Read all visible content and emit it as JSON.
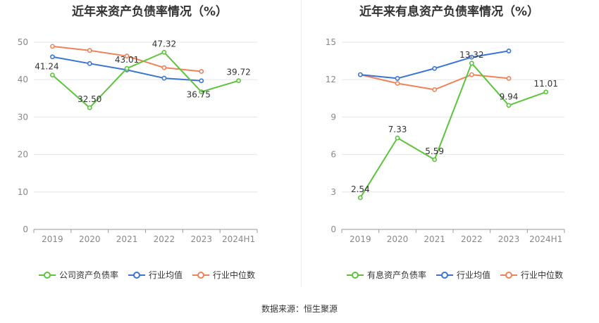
{
  "source_text": "数据来源：恒生聚源",
  "colors": {
    "company": "#5cc43c",
    "industry_avg": "#3a75d6",
    "industry_median": "#f0825a",
    "grid": "#e6e6e6",
    "axis_text": "#888888"
  },
  "chart_data": [
    {
      "type": "line",
      "title": "近年来资产负债率情况（%）",
      "categories": [
        "2019",
        "2020",
        "2021",
        "2022",
        "2023",
        "2024H1"
      ],
      "ylim": [
        0,
        50
      ],
      "yticks": [
        0,
        10,
        20,
        30,
        40,
        50
      ],
      "grid": true,
      "legend_position": "bottom",
      "series": [
        {
          "name": "公司资产负债率",
          "color": "#5cc43c",
          "values": [
            41.24,
            32.5,
            43.01,
            47.32,
            36.75,
            39.72
          ],
          "labels": [
            "41.24",
            "32.50",
            "43.01",
            "47.32",
            "36.75",
            "39.72"
          ]
        },
        {
          "name": "行业均值",
          "color": "#3a75d6",
          "values": [
            46.1,
            44.3,
            42.6,
            40.4,
            39.7,
            null
          ]
        },
        {
          "name": "行业中位数",
          "color": "#f0825a",
          "values": [
            48.9,
            47.8,
            46.3,
            43.2,
            42.2,
            null
          ]
        }
      ]
    },
    {
      "type": "line",
      "title": "近年来有息资产负债率情况（%）",
      "categories": [
        "2019",
        "2020",
        "2021",
        "2022",
        "2023",
        "2024H1"
      ],
      "ylim": [
        0,
        15
      ],
      "yticks": [
        0,
        3,
        6,
        9,
        12,
        15
      ],
      "grid": true,
      "legend_position": "bottom",
      "series": [
        {
          "name": "有息资产负债率",
          "color": "#5cc43c",
          "values": [
            2.54,
            7.33,
            5.59,
            13.32,
            9.94,
            11.01
          ],
          "labels": [
            "2.54",
            "7.33",
            "5.59",
            "13.32",
            "9.94",
            "11.01"
          ]
        },
        {
          "name": "行业均值",
          "color": "#3a75d6",
          "values": [
            12.4,
            12.1,
            12.9,
            13.8,
            14.3,
            null
          ]
        },
        {
          "name": "行业中位数",
          "color": "#f0825a",
          "values": [
            12.4,
            11.7,
            11.2,
            12.4,
            12.1,
            null
          ]
        }
      ]
    }
  ]
}
